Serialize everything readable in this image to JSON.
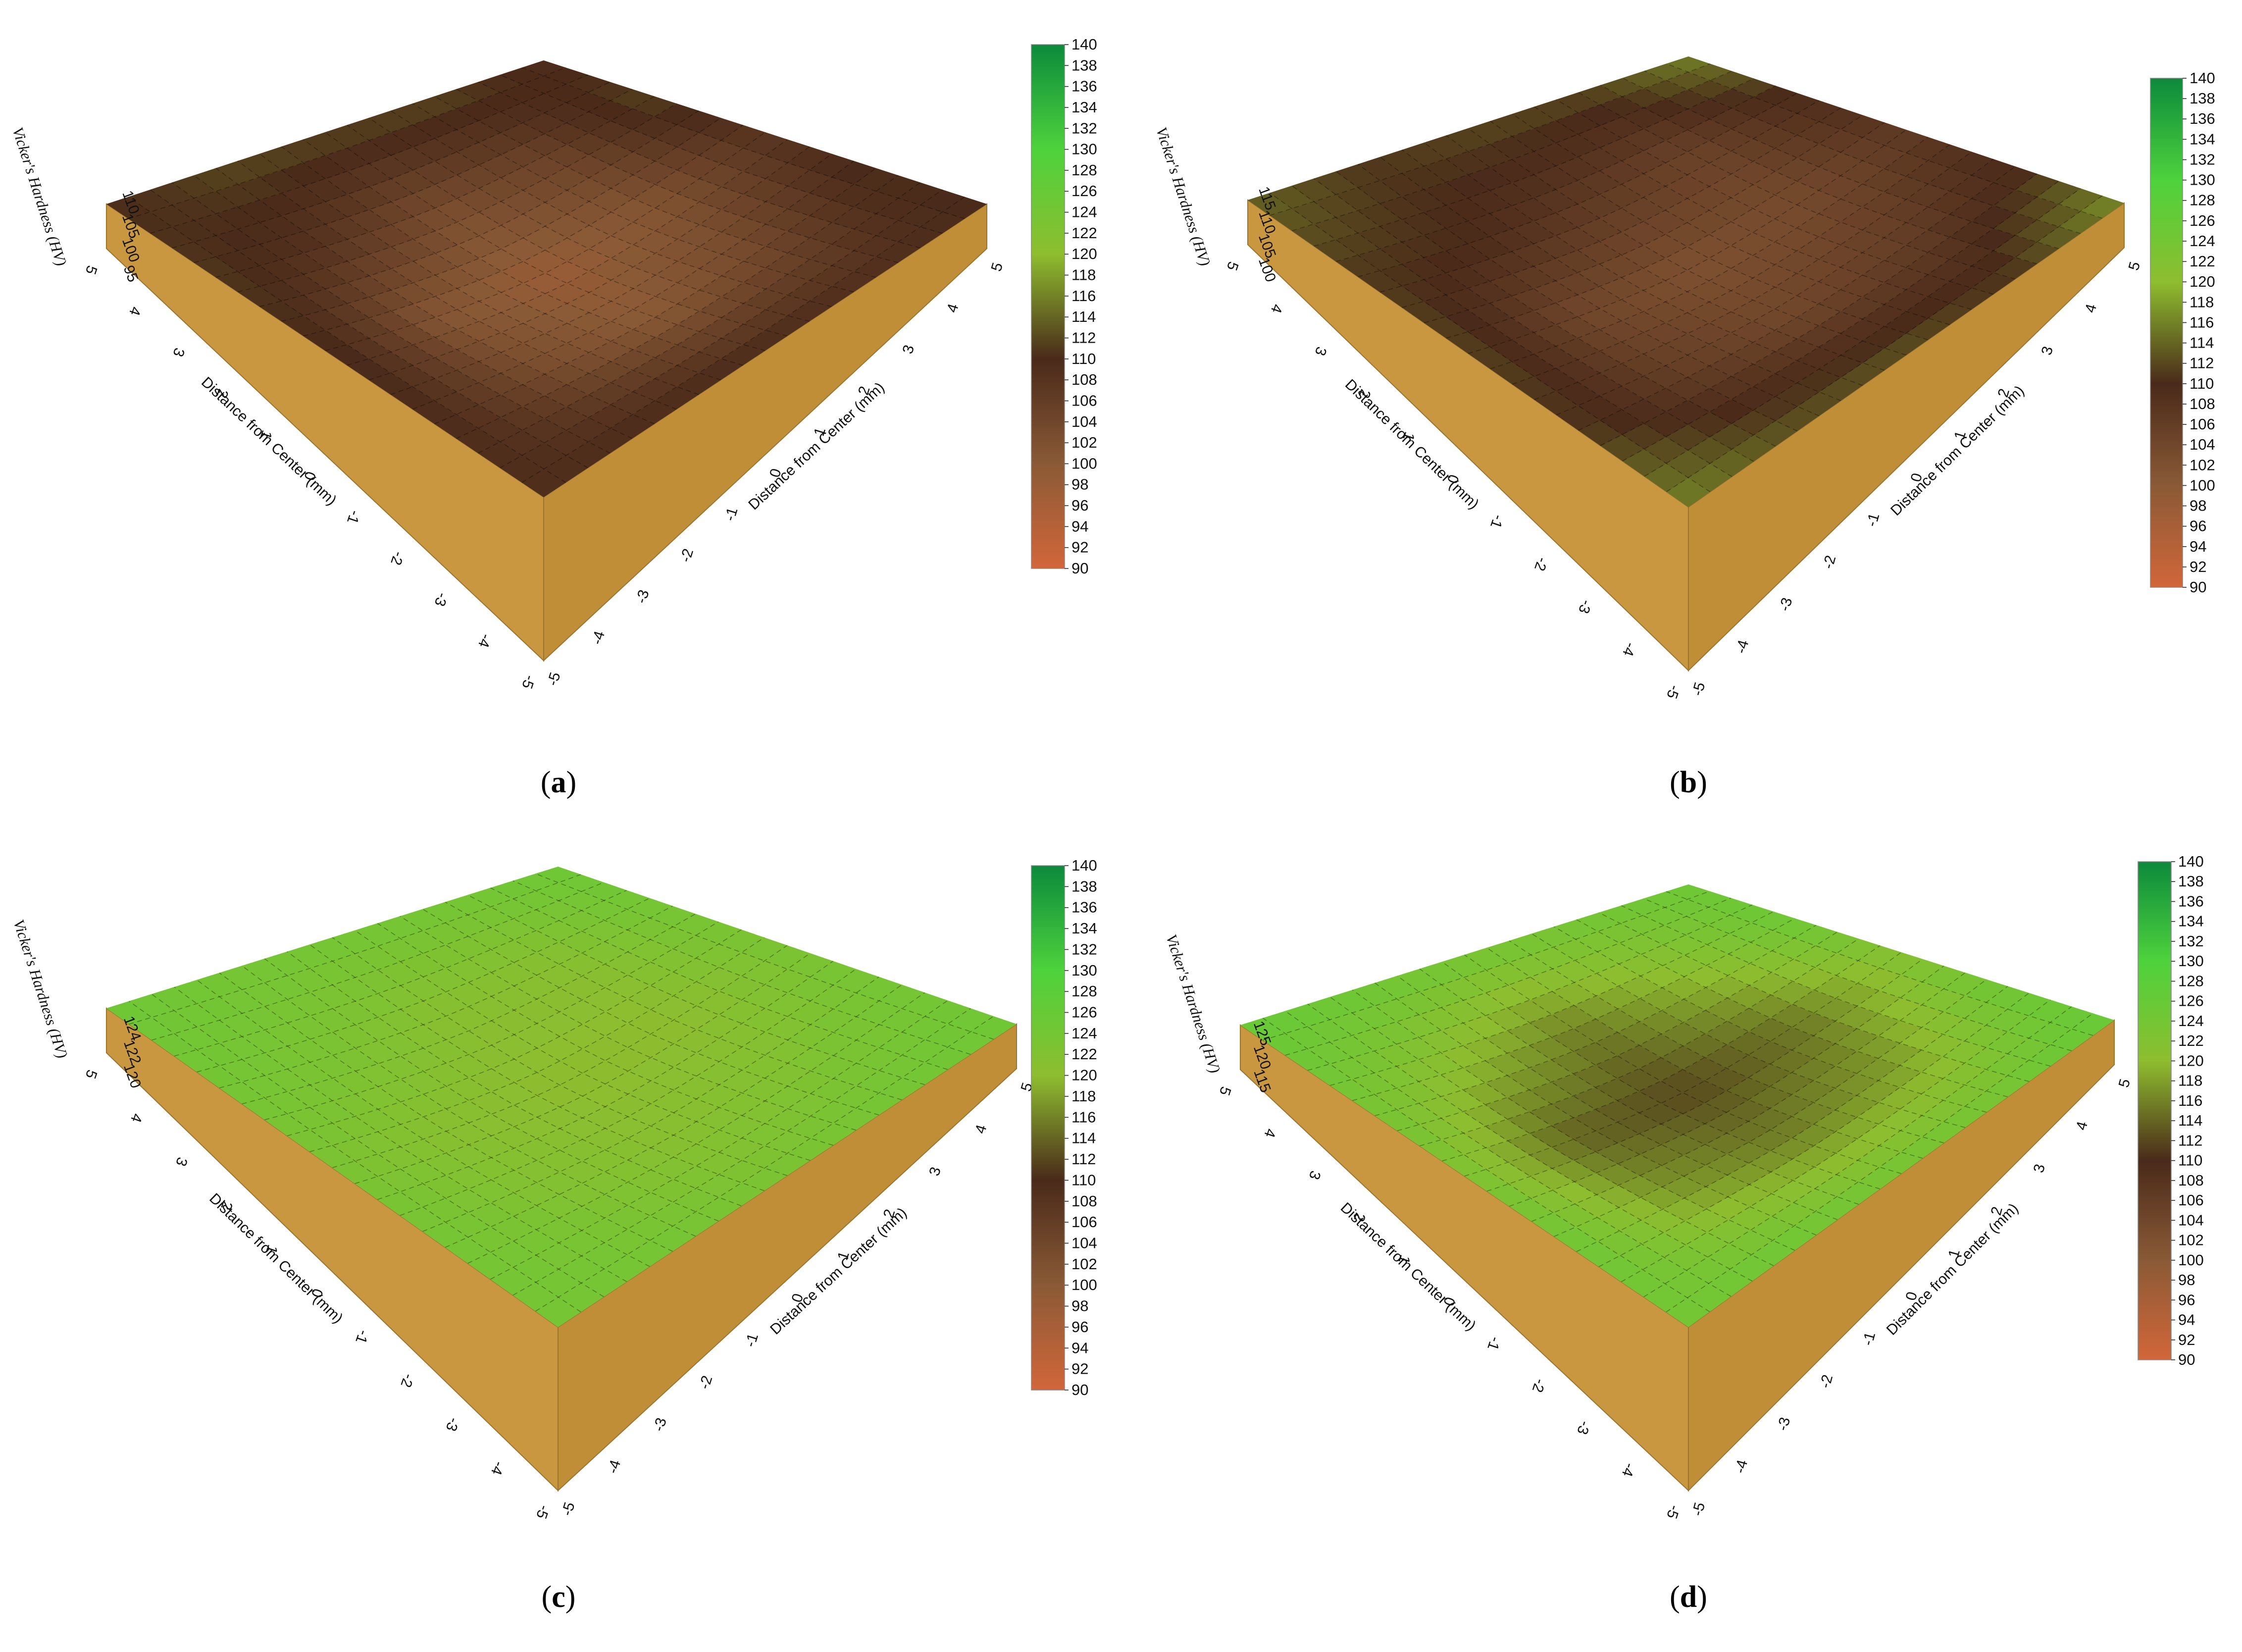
{
  "figure": {
    "colorbar_ticks": [
      140,
      138,
      136,
      134,
      132,
      130,
      128,
      126,
      124,
      122,
      120,
      118,
      116,
      114,
      112,
      110,
      108,
      106,
      104,
      102,
      100,
      98,
      96,
      94,
      92,
      90
    ],
    "colormap": {
      "min": 90,
      "max": 140,
      "stops": [
        "#d2663a",
        "#8a5a36",
        "#4a2a1a",
        "#8ebd2f",
        "#4ed23c",
        "#0c8a3c"
      ]
    },
    "side_color": "#c9973f"
  },
  "chart_data": [
    {
      "type": "surface",
      "label": "(a)",
      "letter": "a",
      "xlabel": "Distance from Center (mm)",
      "ylabel": "Distance from Center (mm)",
      "zlabel": "Vicker's Hardness (HV)",
      "x_ticks": [
        "-5",
        "-4",
        "-3",
        "-2",
        "-1",
        "0",
        "1",
        "2",
        "3",
        "4",
        "5"
      ],
      "y_ticks": [
        "-5",
        "-4",
        "-3",
        "-2",
        "-1",
        "0",
        "1",
        "2",
        "3",
        "4",
        "5"
      ],
      "z_ticks": [
        "110",
        "105",
        "100",
        "95"
      ],
      "colorbar_range": [
        90,
        140
      ],
      "values": {
        "x": [
          -5,
          -2.5,
          0,
          2.5,
          5
        ],
        "y": [
          -5,
          -2.5,
          0,
          2.5,
          5
        ],
        "z": [
          [
            109,
            110,
            110,
            109,
            110
          ],
          [
            110,
            103,
            100,
            104,
            111
          ],
          [
            111,
            101,
            98,
            101,
            108
          ],
          [
            111,
            108,
            103,
            105,
            112
          ],
          [
            110,
            112,
            112,
            112,
            109
          ]
        ]
      }
    },
    {
      "type": "surface",
      "label": "(b)",
      "letter": "b",
      "xlabel": "Distance from Center (mm)",
      "ylabel": "Distance from Center (mm)",
      "zlabel": "Vicker's Hardness (HV)",
      "x_ticks": [
        "-5",
        "-4",
        "-3",
        "-2",
        "-1",
        "0",
        "1",
        "2",
        "3",
        "4",
        "5"
      ],
      "y_ticks": [
        "-5",
        "-4",
        "-3",
        "-2",
        "-1",
        "0",
        "1",
        "2",
        "3",
        "4",
        "5"
      ],
      "z_ticks": [
        "115",
        "110",
        "105",
        "100"
      ],
      "colorbar_range": [
        90,
        140
      ],
      "values": {
        "x": [
          -5,
          -2.5,
          0,
          2.5,
          5
        ],
        "y": [
          -5,
          -2.5,
          0,
          2.5,
          5
        ],
        "z": [
          [
            116,
            113,
            113,
            111,
            117
          ],
          [
            111,
            106,
            104,
            106,
            110
          ],
          [
            112,
            104,
            102,
            103,
            107
          ],
          [
            111,
            110,
            107,
            105,
            110
          ],
          [
            114,
            111,
            112,
            112,
            116
          ]
        ]
      }
    },
    {
      "type": "surface",
      "label": "(c)",
      "letter": "c",
      "xlabel": "Distance from Center (mm)",
      "ylabel": "Distance from Center (mm)",
      "zlabel": "Vicker's Hardness (HV)",
      "x_ticks": [
        "-5",
        "-4",
        "-3",
        "-2",
        "-1",
        "0",
        "1",
        "2",
        "3",
        "4",
        "5"
      ],
      "y_ticks": [
        "-5",
        "-4",
        "-3",
        "-2",
        "-1",
        "0",
        "1",
        "2",
        "3",
        "4",
        "5"
      ],
      "z_ticks": [
        "124",
        "122",
        "120"
      ],
      "colorbar_range": [
        90,
        140
      ],
      "values": {
        "x": [
          -5,
          -2.5,
          0,
          2.5,
          5
        ],
        "y": [
          -5,
          -2.5,
          0,
          2.5,
          5
        ],
        "z": [
          [
            124,
            124,
            123,
            124,
            125
          ],
          [
            124,
            122,
            121,
            122,
            124
          ],
          [
            123,
            121,
            120,
            120,
            123
          ],
          [
            124,
            123,
            121,
            121,
            124
          ],
          [
            125,
            124,
            124,
            124,
            125
          ]
        ]
      }
    },
    {
      "type": "surface",
      "label": "(d)",
      "letter": "d",
      "xlabel": "Distance from Center (mm)",
      "ylabel": "Distance from Center (mm)",
      "zlabel": "Vicker's Hardness (HV)",
      "x_ticks": [
        "-5",
        "-4",
        "-3",
        "-2",
        "-1",
        "0",
        "1",
        "2",
        "3",
        "4",
        "5"
      ],
      "y_ticks": [
        "-5",
        "-4",
        "-3",
        "-2",
        "-1",
        "0",
        "1",
        "2",
        "3",
        "4",
        "5"
      ],
      "z_ticks": [
        "125",
        "120",
        "115"
      ],
      "colorbar_range": [
        90,
        140
      ],
      "values": {
        "x": [
          -5,
          -2.5,
          0,
          2.5,
          5
        ],
        "y": [
          -5,
          -2.5,
          0,
          2.5,
          5
        ],
        "z": [
          [
            124,
            125,
            124,
            124,
            126
          ],
          [
            125,
            118,
            116,
            118,
            125
          ],
          [
            123,
            114,
            112,
            115,
            122
          ],
          [
            124,
            120,
            116,
            120,
            125
          ],
          [
            126,
            125,
            124,
            124,
            125
          ]
        ]
      }
    }
  ]
}
